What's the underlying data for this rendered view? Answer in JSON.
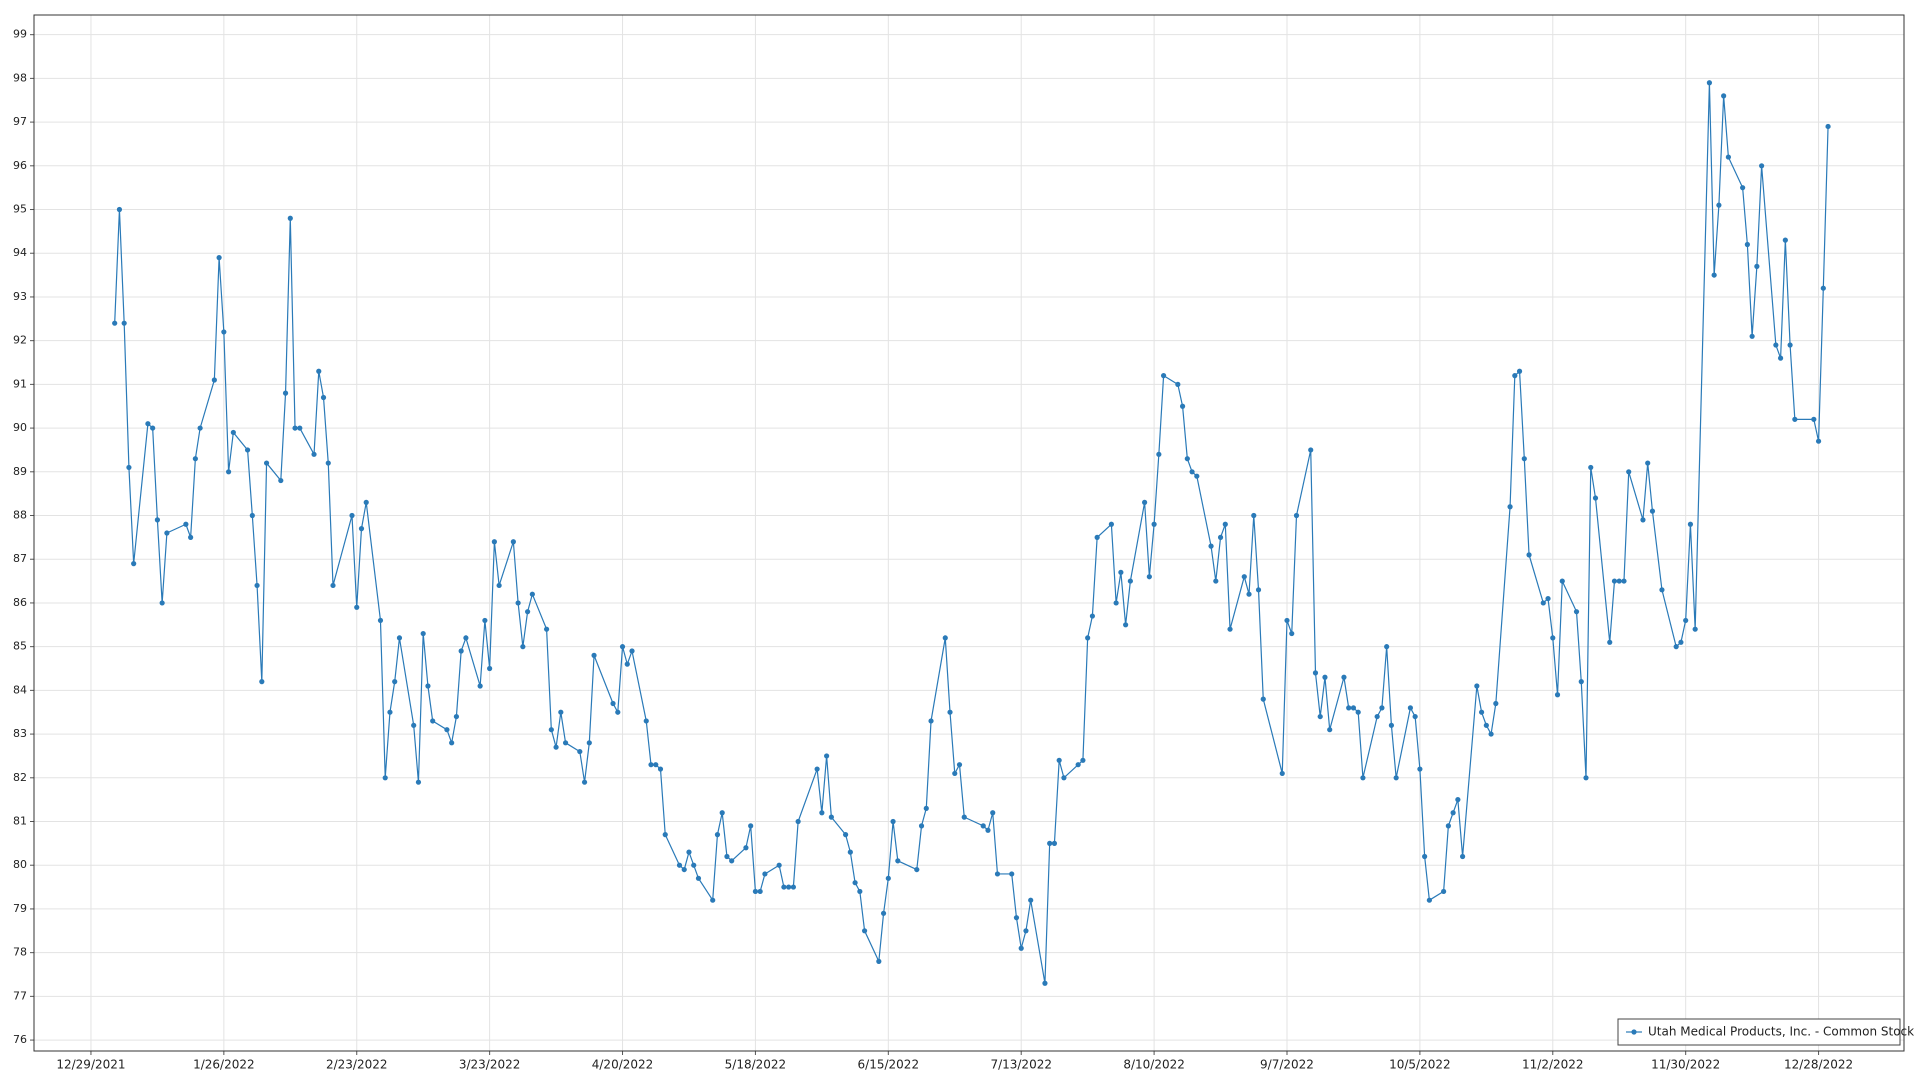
{
  "chart_data": {
    "type": "line",
    "x": [
      "1/3/2022",
      "1/4/2022",
      "1/5/2022",
      "1/6/2022",
      "1/7/2022",
      "1/10/2022",
      "1/11/2022",
      "1/12/2022",
      "1/13/2022",
      "1/14/2022",
      "1/18/2022",
      "1/19/2022",
      "1/20/2022",
      "1/21/2022",
      "1/24/2022",
      "1/25/2022",
      "1/26/2022",
      "1/27/2022",
      "1/28/2022",
      "1/31/2022",
      "2/1/2022",
      "2/2/2022",
      "2/3/2022",
      "2/4/2022",
      "2/7/2022",
      "2/8/2022",
      "2/9/2022",
      "2/10/2022",
      "2/11/2022",
      "2/14/2022",
      "2/15/2022",
      "2/16/2022",
      "2/17/2022",
      "2/18/2022",
      "2/22/2022",
      "2/23/2022",
      "2/24/2022",
      "2/25/2022",
      "2/28/2022",
      "3/1/2022",
      "3/2/2022",
      "3/3/2022",
      "3/4/2022",
      "3/7/2022",
      "3/8/2022",
      "3/9/2022",
      "3/10/2022",
      "3/11/2022",
      "3/14/2022",
      "3/15/2022",
      "3/16/2022",
      "3/17/2022",
      "3/18/2022",
      "3/21/2022",
      "3/22/2022",
      "3/23/2022",
      "3/24/2022",
      "3/25/2022",
      "3/28/2022",
      "3/29/2022",
      "3/30/2022",
      "3/31/2022",
      "4/1/2022",
      "4/4/2022",
      "4/5/2022",
      "4/6/2022",
      "4/7/2022",
      "4/8/2022",
      "4/11/2022",
      "4/12/2022",
      "4/13/2022",
      "4/14/2022",
      "4/18/2022",
      "4/19/2022",
      "4/20/2022",
      "4/21/2022",
      "4/22/2022",
      "4/25/2022",
      "4/26/2022",
      "4/27/2022",
      "4/28/2022",
      "4/29/2022",
      "5/2/2022",
      "5/3/2022",
      "5/4/2022",
      "5/5/2022",
      "5/6/2022",
      "5/9/2022",
      "5/10/2022",
      "5/11/2022",
      "5/12/2022",
      "5/13/2022",
      "5/16/2022",
      "5/17/2022",
      "5/18/2022",
      "5/19/2022",
      "5/20/2022",
      "5/23/2022",
      "5/24/2022",
      "5/25/2022",
      "5/26/2022",
      "5/27/2022",
      "5/31/2022",
      "6/1/2022",
      "6/2/2022",
      "6/3/2022",
      "6/6/2022",
      "6/7/2022",
      "6/8/2022",
      "6/9/2022",
      "6/10/2022",
      "6/13/2022",
      "6/14/2022",
      "6/15/2022",
      "6/16/2022",
      "6/17/2022",
      "6/21/2022",
      "6/22/2022",
      "6/23/2022",
      "6/24/2022",
      "6/27/2022",
      "6/28/2022",
      "6/29/2022",
      "6/30/2022",
      "7/1/2022",
      "7/5/2022",
      "7/6/2022",
      "7/7/2022",
      "7/8/2022",
      "7/11/2022",
      "7/12/2022",
      "7/13/2022",
      "7/14/2022",
      "7/15/2022",
      "7/18/2022",
      "7/19/2022",
      "7/20/2022",
      "7/21/2022",
      "7/22/2022",
      "7/25/2022",
      "7/26/2022",
      "7/27/2022",
      "7/28/2022",
      "7/29/2022",
      "8/1/2022",
      "8/2/2022",
      "8/3/2022",
      "8/4/2022",
      "8/5/2022",
      "8/8/2022",
      "8/9/2022",
      "8/10/2022",
      "8/11/2022",
      "8/12/2022",
      "8/15/2022",
      "8/16/2022",
      "8/17/2022",
      "8/18/2022",
      "8/19/2022",
      "8/22/2022",
      "8/23/2022",
      "8/24/2022",
      "8/25/2022",
      "8/26/2022",
      "8/29/2022",
      "8/30/2022",
      "8/31/2022",
      "9/1/2022",
      "9/2/2022",
      "9/6/2022",
      "9/7/2022",
      "9/8/2022",
      "9/9/2022",
      "9/12/2022",
      "9/13/2022",
      "9/14/2022",
      "9/15/2022",
      "9/16/2022",
      "9/19/2022",
      "9/20/2022",
      "9/21/2022",
      "9/22/2022",
      "9/23/2022",
      "9/26/2022",
      "9/27/2022",
      "9/28/2022",
      "9/29/2022",
      "9/30/2022",
      "10/3/2022",
      "10/4/2022",
      "10/5/2022",
      "10/6/2022",
      "10/7/2022",
      "10/10/2022",
      "10/11/2022",
      "10/12/2022",
      "10/13/2022",
      "10/14/2022",
      "10/17/2022",
      "10/18/2022",
      "10/19/2022",
      "10/20/2022",
      "10/21/2022",
      "10/24/2022",
      "10/25/2022",
      "10/26/2022",
      "10/27/2022",
      "10/28/2022",
      "10/31/2022",
      "11/1/2022",
      "11/2/2022",
      "11/3/2022",
      "11/4/2022",
      "11/7/2022",
      "11/8/2022",
      "11/9/2022",
      "11/10/2022",
      "11/11/2022",
      "11/14/2022",
      "11/15/2022",
      "11/16/2022",
      "11/17/2022",
      "11/18/2022",
      "11/21/2022",
      "11/22/2022",
      "11/23/2022",
      "11/25/2022",
      "11/28/2022",
      "11/29/2022",
      "11/30/2022",
      "12/1/2022",
      "12/2/2022",
      "12/5/2022",
      "12/6/2022",
      "12/7/2022",
      "12/8/2022",
      "12/9/2022",
      "12/12/2022",
      "12/13/2022",
      "12/14/2022",
      "12/15/2022",
      "12/16/2022",
      "12/19/2022",
      "12/20/2022",
      "12/21/2022",
      "12/22/2022",
      "12/23/2022",
      "12/27/2022",
      "12/28/2022",
      "12/29/2022",
      "12/30/2022"
    ],
    "series": [
      {
        "name": "Utah Medical Products, Inc. - Common Stock",
        "color": "#2a7ab8",
        "values": [
          92.4,
          95.0,
          92.4,
          89.1,
          86.9,
          90.1,
          90.0,
          87.9,
          86.0,
          87.6,
          87.8,
          87.5,
          89.3,
          90.0,
          91.1,
          93.9,
          92.2,
          89.0,
          89.9,
          89.5,
          88.0,
          86.4,
          84.2,
          89.2,
          88.8,
          90.8,
          94.8,
          90.0,
          90.0,
          89.4,
          91.3,
          90.7,
          89.2,
          86.4,
          88.0,
          85.9,
          87.7,
          88.3,
          85.6,
          82.0,
          83.5,
          84.2,
          85.2,
          83.2,
          81.9,
          85.3,
          84.1,
          83.3,
          83.1,
          82.8,
          83.4,
          84.9,
          85.2,
          84.1,
          85.6,
          84.5,
          87.4,
          86.4,
          87.4,
          86.0,
          85.0,
          85.8,
          86.2,
          85.4,
          83.1,
          82.7,
          83.5,
          82.8,
          82.6,
          81.9,
          82.8,
          84.8,
          83.7,
          83.5,
          85.0,
          84.6,
          84.9,
          83.3,
          82.3,
          82.3,
          82.2,
          80.7,
          80.0,
          79.9,
          80.3,
          80.0,
          79.7,
          79.2,
          80.7,
          81.2,
          80.2,
          80.1,
          80.4,
          80.9,
          79.4,
          79.4,
          79.8,
          80.0,
          79.5,
          79.5,
          79.5,
          81.0,
          82.2,
          81.2,
          82.5,
          81.1,
          80.7,
          80.3,
          79.6,
          79.4,
          78.5,
          77.8,
          78.9,
          79.7,
          81.0,
          80.1,
          79.9,
          80.9,
          81.3,
          83.3,
          85.2,
          83.5,
          82.1,
          82.3,
          81.1,
          80.9,
          80.8,
          81.2,
          79.8,
          79.8,
          78.8,
          78.1,
          78.5,
          79.2,
          77.3,
          80.5,
          80.5,
          82.4,
          82.0,
          82.3,
          82.4,
          85.2,
          85.7,
          87.5,
          87.8,
          86.0,
          86.7,
          85.5,
          86.5,
          88.3,
          86.6,
          87.8,
          89.4,
          91.2,
          91.0,
          90.5,
          89.3,
          89.0,
          88.9,
          87.3,
          86.5,
          87.5,
          87.8,
          85.4,
          86.6,
          86.2,
          88.0,
          86.3,
          83.8,
          82.1,
          85.6,
          85.3,
          88.0,
          89.5,
          84.4,
          83.4,
          84.3,
          83.1,
          84.3,
          83.6,
          83.6,
          83.5,
          82.0,
          83.4,
          83.6,
          85.0,
          83.2,
          82.0,
          83.6,
          83.4,
          82.2,
          80.2,
          79.2,
          79.4,
          80.9,
          81.2,
          81.5,
          80.2,
          84.1,
          83.5,
          83.2,
          83.0,
          83.7,
          88.2,
          91.2,
          91.3,
          89.3,
          87.1,
          86.0,
          86.1,
          85.2,
          83.9,
          86.5,
          85.8,
          84.2,
          82.0,
          89.1,
          88.4,
          85.1,
          86.5,
          86.5,
          86.5,
          89.0,
          87.9,
          89.2,
          88.1,
          86.3,
          85.0,
          85.1,
          85.6,
          87.8,
          85.4,
          97.9,
          93.5,
          95.1,
          97.6,
          96.2,
          95.5,
          94.2,
          92.1,
          93.7,
          96.0,
          91.9,
          91.6,
          94.3,
          91.9,
          90.2,
          90.2,
          89.7,
          93.2,
          96.9
        ]
      }
    ],
    "xlim": [
      "12/17/2021",
      "1/15/2023"
    ],
    "xticks": [
      "12/29/2021",
      "1/26/2022",
      "2/23/2022",
      "3/23/2022",
      "4/20/2022",
      "5/18/2022",
      "6/15/2022",
      "7/13/2022",
      "8/10/2022",
      "9/7/2022",
      "10/5/2022",
      "11/2/2022",
      "11/30/2022",
      "12/28/2022"
    ],
    "ylim": [
      75.75,
      99.45
    ],
    "yticks": [
      76,
      77,
      78,
      79,
      80,
      81,
      82,
      83,
      84,
      85,
      86,
      87,
      88,
      89,
      90,
      91,
      92,
      93,
      94,
      95,
      96,
      97,
      98,
      99
    ],
    "grid": true,
    "legend": "lower right"
  }
}
